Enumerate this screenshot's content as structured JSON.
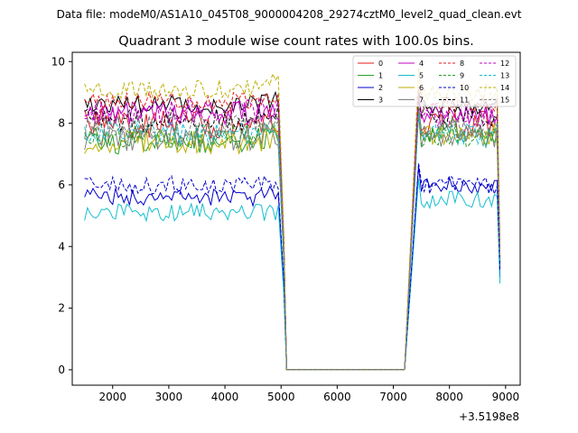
{
  "chart_data": {
    "type": "line",
    "suptitle": "Data file: modeM0/AS1A10_045T08_9000004208_29274cztM0_level2_quad_clean.evt",
    "title": "Quadrant 3 module wise count rates with 100.0s bins.",
    "xlabel": "",
    "ylabel": "",
    "x_offset_label": "+3.5198e8",
    "xlim": [
      1280,
      9260
    ],
    "ylim": [
      -0.5,
      10.3
    ],
    "x_ticks": [
      2000,
      3000,
      4000,
      5000,
      6000,
      7000,
      8000,
      9000
    ],
    "y_ticks": [
      0,
      2,
      4,
      6,
      8,
      10
    ],
    "x_tick_labels": [
      "2000",
      "3000",
      "4000",
      "5000",
      "6000",
      "7000",
      "8000",
      "9000"
    ],
    "y_tick_labels": [
      "0",
      "2",
      "4",
      "6",
      "8",
      "10"
    ],
    "grid": false,
    "legend_position": "top-right",
    "legend_columns": 4,
    "x_segments": {
      "first": {
        "start": 1500,
        "step": 50,
        "end": 4950
      },
      "drop": [
        5050
      ],
      "zero": [
        5100,
        7200
      ],
      "second": {
        "start": 7200,
        "step": 50,
        "end": 8850
      },
      "final": [
        8900
      ]
    },
    "series": [
      {
        "name": "0",
        "color": "#e31a1c",
        "dash": false,
        "base1": 8.0,
        "base2": 8.0,
        "amp": 0.5,
        "peak": 8.5,
        "end": 3.3
      },
      {
        "name": "1",
        "color": "#2ca02c",
        "dash": false,
        "base1": 7.4,
        "base2": 7.8,
        "amp": 0.4,
        "peak": 8.5,
        "end": 3.5
      },
      {
        "name": "2",
        "color": "#0000cc",
        "dash": false,
        "base1": 5.6,
        "base2": 6.0,
        "amp": 0.3,
        "peak": 6.6,
        "end": 3.0
      },
      {
        "name": "3",
        "color": "#000000",
        "dash": false,
        "base1": 8.6,
        "base2": 8.6,
        "amp": 0.3,
        "peak": 9.0,
        "end": 3.4
      },
      {
        "name": "4",
        "color": "#c000c0",
        "dash": false,
        "base1": 8.3,
        "base2": 8.3,
        "amp": 0.4,
        "peak": 8.9,
        "end": 3.6
      },
      {
        "name": "5",
        "color": "#17becf",
        "dash": false,
        "base1": 5.1,
        "base2": 5.5,
        "amp": 0.3,
        "peak": 6.2,
        "end": 2.8
      },
      {
        "name": "6",
        "color": "#bcae00",
        "dash": false,
        "base1": 7.4,
        "base2": 7.6,
        "amp": 0.4,
        "peak": 8.4,
        "end": 3.5
      },
      {
        "name": "7",
        "color": "#808080",
        "dash": false,
        "base1": 7.5,
        "base2": 7.6,
        "amp": 0.4,
        "peak": 8.3,
        "end": 3.4
      },
      {
        "name": "8",
        "color": "#e31a1c",
        "dash": true,
        "base1": 8.7,
        "base2": 8.6,
        "amp": 0.3,
        "peak": 9.2,
        "end": 3.9
      },
      {
        "name": "9",
        "color": "#2ca02c",
        "dash": true,
        "base1": 7.6,
        "base2": 7.6,
        "amp": 0.4,
        "peak": 8.4,
        "end": 3.5
      },
      {
        "name": "10",
        "color": "#0000cc",
        "dash": true,
        "base1": 6.0,
        "base2": 6.0,
        "amp": 0.3,
        "peak": 6.7,
        "end": 3.2
      },
      {
        "name": "11",
        "color": "#000000",
        "dash": true,
        "base1": 8.1,
        "base2": 8.3,
        "amp": 0.4,
        "peak": 8.8,
        "end": 3.6
      },
      {
        "name": "12",
        "color": "#c000c0",
        "dash": true,
        "base1": 8.4,
        "base2": 8.2,
        "amp": 0.4,
        "peak": 9.0,
        "end": 3.7
      },
      {
        "name": "13",
        "color": "#17becf",
        "dash": true,
        "base1": 7.7,
        "base2": 7.6,
        "amp": 0.4,
        "peak": 8.3,
        "end": 3.5
      },
      {
        "name": "14",
        "color": "#bcae00",
        "dash": true,
        "base1": 9.1,
        "base2": 9.0,
        "amp": 0.3,
        "peak": 9.8,
        "end": 4.1
      },
      {
        "name": "15",
        "color": "#808080",
        "dash": true,
        "base1": 7.9,
        "base2": 7.9,
        "amp": 0.4,
        "peak": 8.6,
        "end": 3.6
      }
    ]
  }
}
